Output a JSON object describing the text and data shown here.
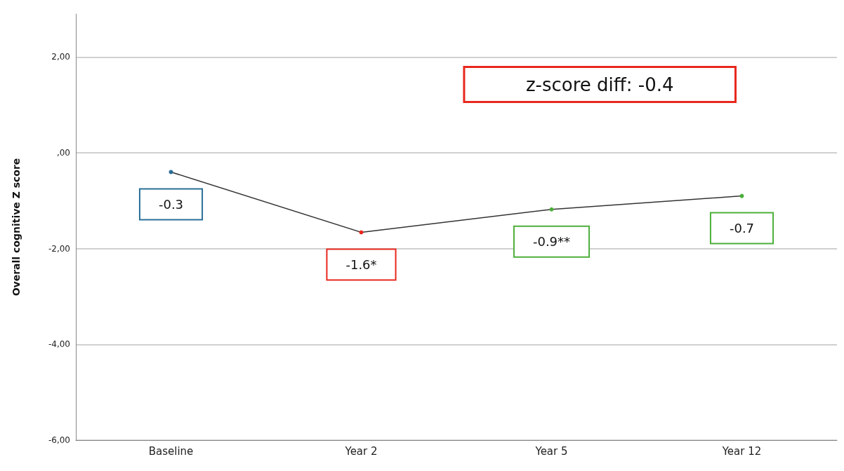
{
  "chart_data": {
    "type": "line",
    "ylabel": "Overall cognitive Z score",
    "categories": [
      "Baseline",
      "Year 2",
      "Year 5",
      "Year 12"
    ],
    "series": [
      {
        "color": "#333333",
        "values": [
          -0.4,
          -1.66,
          -1.18,
          -0.9
        ],
        "colors": [
          "#2a6f97",
          "#e8281e",
          "#4caf3a",
          "#4caf3a"
        ]
      }
    ],
    "ylim": [
      -6,
      2.9
    ],
    "yticks": [
      {
        "value": -6,
        "label": "-6,00"
      },
      {
        "value": -4,
        "label": "-4,00"
      },
      {
        "value": -2,
        "label": "-2,00"
      },
      {
        "value": 0,
        "label": ",00"
      },
      {
        "value": 2,
        "label": "2,00"
      }
    ],
    "grid": "y",
    "marker": "circle",
    "annotations": [
      "-0.3",
      "-1.6*",
      "-0.9**",
      "-0.7",
      "z-score diff: -0.4"
    ]
  }
}
